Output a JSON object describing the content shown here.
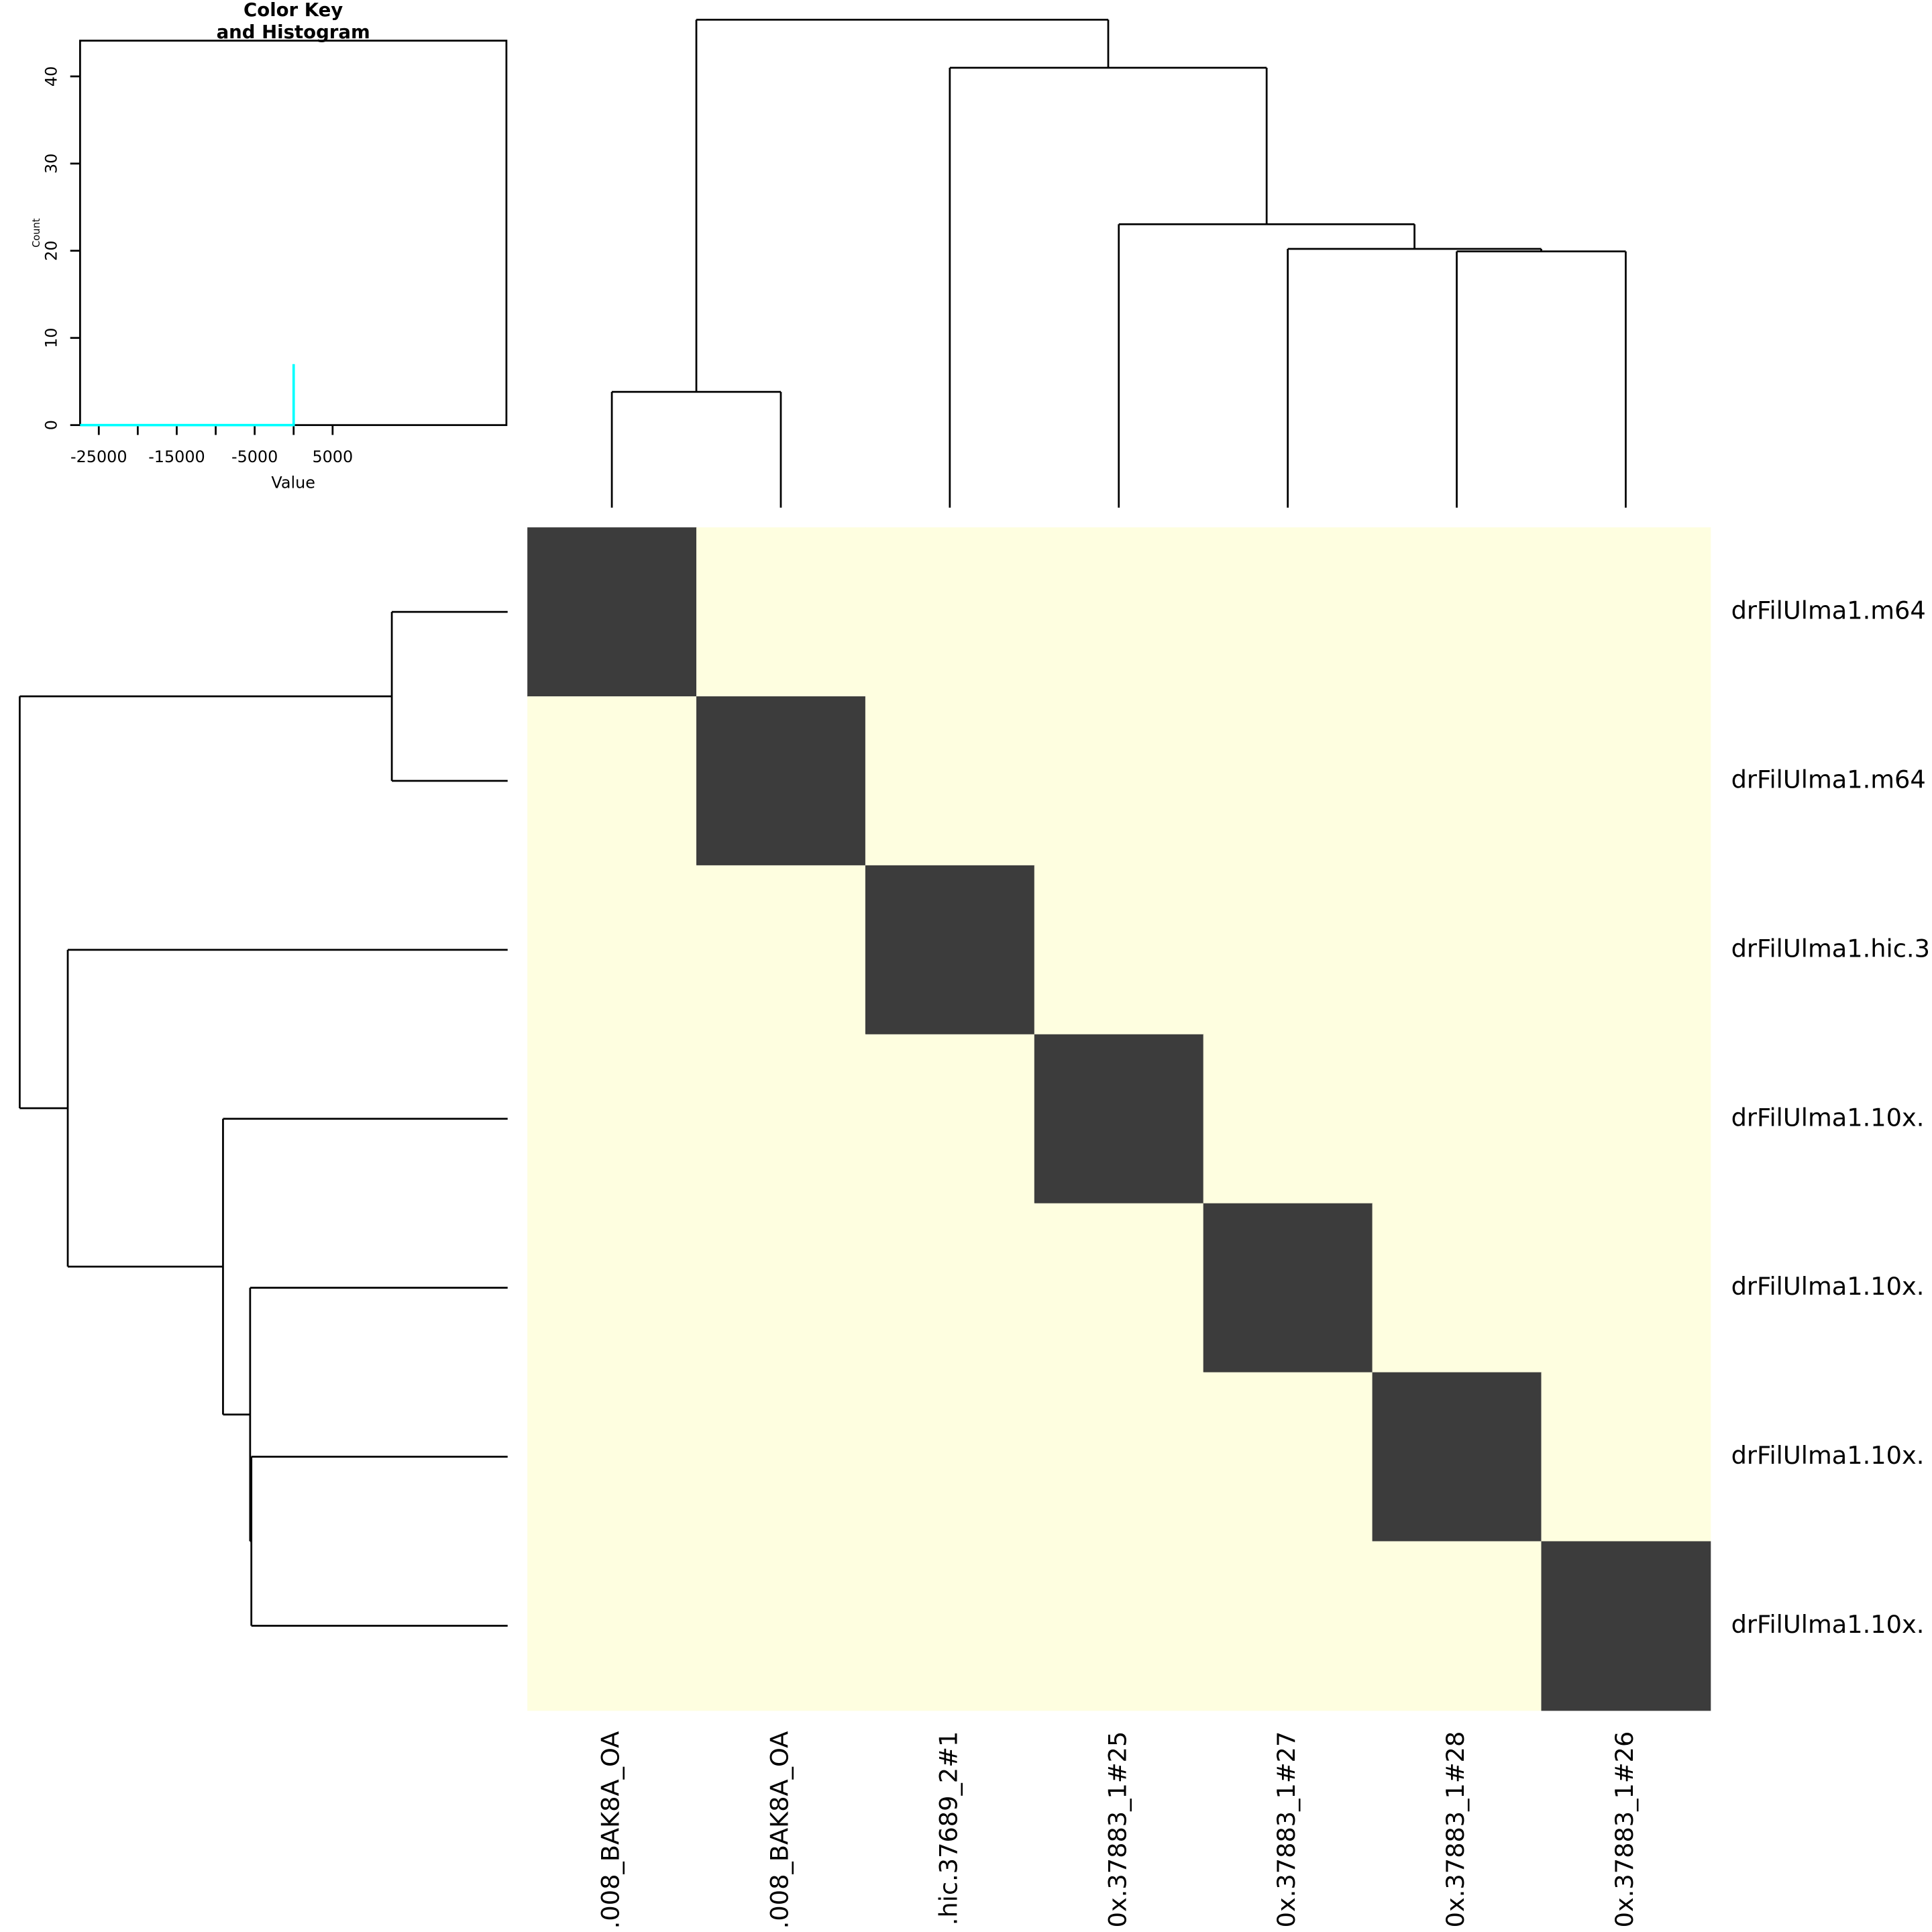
{
  "chart_data": [
    {
      "type": "line",
      "title_lines": [
        "Color Key",
        "and Histogram"
      ],
      "xlabel": "Value",
      "ylabel": "Count",
      "xlim": [
        -27400,
        27300
      ],
      "ylim": [
        0,
        44.1
      ],
      "xticks": [
        -25000,
        -15000,
        -5000,
        5000
      ],
      "xminor": [
        -20000,
        -10000,
        0
      ],
      "yticks": [
        0,
        10,
        20,
        30,
        40
      ],
      "series": [
        {
          "color": "#00ffff",
          "x": [
            -27400,
            0,
            0
          ],
          "values": [
            0,
            0,
            7
          ]
        }
      ]
    },
    {
      "type": "heatmap",
      "row_labels": [
        "drFilUlma1.m64",
        "drFilUlma1.m64",
        "drFilUlma1.hic.3",
        "drFilUlma1.10x.",
        "drFilUlma1.10x.",
        "drFilUlma1.10x.",
        "drFilUlma1.10x."
      ],
      "col_labels": [
        ".008_BAK8A_OA",
        ".008_BAK8A_OA",
        ".hic.37689_2#1",
        "0x.37883_1#25",
        "0x.37883_1#27",
        "0x.37883_1#28",
        "0x.37883_1#26"
      ],
      "low_color": "#fefee0",
      "high_color": "#3c3c3c",
      "values": [
        [
          0,
          -27000,
          -27000,
          -27000,
          -27000,
          -27000,
          -27000
        ],
        [
          -27000,
          0,
          -27000,
          -27000,
          -27000,
          -27000,
          -27000
        ],
        [
          -27000,
          -27000,
          0,
          -27000,
          -27000,
          -27000,
          -27000
        ],
        [
          -27000,
          -27000,
          -27000,
          0,
          -27000,
          -27000,
          -27000
        ],
        [
          -27000,
          -27000,
          -27000,
          -27000,
          0,
          -27000,
          -27000
        ],
        [
          -27000,
          -27000,
          -27000,
          -27000,
          -27000,
          0,
          -27000
        ],
        [
          -27000,
          -27000,
          -27000,
          -27000,
          -27000,
          -27000,
          0
        ]
      ],
      "col_dendrogram": {
        "merge": [
          [
            -1,
            -2
          ],
          [
            -6,
            -7
          ],
          [
            -5,
            2
          ],
          [
            -4,
            3
          ],
          [
            -3,
            4
          ],
          [
            1,
            5
          ]
        ],
        "heights": [
          94,
          208,
          210,
          230,
          357,
          396
        ]
      },
      "row_dendrogram": {
        "merge": [
          [
            -1,
            -2
          ],
          [
            -6,
            -7
          ],
          [
            -5,
            2
          ],
          [
            -4,
            3
          ],
          [
            -3,
            4
          ],
          [
            1,
            5
          ]
        ],
        "heights": [
          94,
          208,
          209,
          231,
          357,
          396
        ]
      }
    }
  ]
}
